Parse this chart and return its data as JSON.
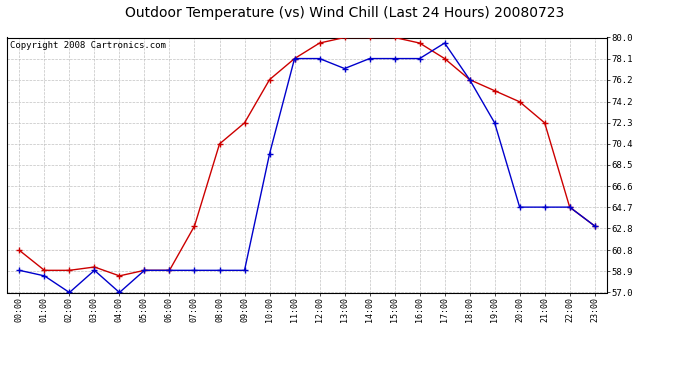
{
  "title": "Outdoor Temperature (vs) Wind Chill (Last 24 Hours) 20080723",
  "copyright": "Copyright 2008 Cartronics.com",
  "hours": [
    "00:00",
    "01:00",
    "02:00",
    "03:00",
    "04:00",
    "05:00",
    "06:00",
    "07:00",
    "08:00",
    "09:00",
    "10:00",
    "11:00",
    "12:00",
    "13:00",
    "14:00",
    "15:00",
    "16:00",
    "17:00",
    "18:00",
    "19:00",
    "20:00",
    "21:00",
    "22:00",
    "23:00"
  ],
  "outdoor_temp": [
    60.8,
    59.0,
    59.0,
    59.3,
    58.5,
    59.0,
    59.0,
    63.0,
    70.4,
    72.3,
    76.2,
    78.1,
    79.5,
    80.0,
    80.0,
    80.0,
    79.5,
    78.1,
    76.2,
    75.2,
    74.2,
    72.3,
    64.7,
    63.0
  ],
  "wind_chill": [
    59.0,
    58.5,
    57.0,
    59.0,
    57.0,
    59.0,
    59.0,
    59.0,
    59.0,
    59.0,
    69.5,
    78.1,
    78.1,
    77.2,
    78.1,
    78.1,
    78.1,
    79.5,
    76.2,
    72.3,
    64.7,
    64.7,
    64.7,
    63.0
  ],
  "temp_color": "#cc0000",
  "wind_color": "#0000cc",
  "bg_color": "#ffffff",
  "plot_bg": "#ffffff",
  "grid_color": "#bbbbbb",
  "ylim": [
    57.0,
    80.0
  ],
  "yticks": [
    57.0,
    58.9,
    60.8,
    62.8,
    64.7,
    66.6,
    68.5,
    70.4,
    72.3,
    74.2,
    76.2,
    78.1,
    80.0
  ],
  "title_fontsize": 10,
  "copyright_fontsize": 6.5
}
